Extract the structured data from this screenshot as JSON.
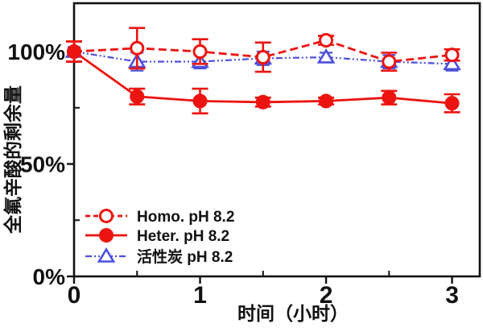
{
  "chart_data": {
    "type": "line",
    "title": "",
    "xlabel": "时间（小时）",
    "ylabel": "全氟辛酸的剩余量",
    "xlim": [
      0,
      3.22
    ],
    "ylim": [
      0,
      121.5
    ],
    "grid": false,
    "legend_position": "lower-left-inside",
    "axis_color": "#111111",
    "x_ticks": [
      {
        "value": 0,
        "label": "0"
      },
      {
        "value": 1,
        "label": "1"
      },
      {
        "value": 2,
        "label": "2"
      },
      {
        "value": 3,
        "label": "3"
      }
    ],
    "x_minor_ticks": [
      0.5,
      1.5,
      2.5
    ],
    "y_ticks": [
      {
        "value": 0,
        "label": "0%"
      },
      {
        "value": 50,
        "label": "50%"
      },
      {
        "value": 100,
        "label": "100%"
      }
    ],
    "y_minor_ticks": [
      25,
      75
    ],
    "x": [
      0,
      0.5,
      1,
      1.5,
      2,
      2.5,
      3
    ],
    "series": [
      {
        "name": "Homo. pH 8.2",
        "color": "#ec1410",
        "line_style": "dashed",
        "marker": "open-circle",
        "values": [
          100,
          101.5,
          100,
          97.5,
          105,
          95.5,
          98.5
        ],
        "errors": [
          4.5,
          9,
          5.5,
          6.5,
          2,
          4,
          2.5
        ]
      },
      {
        "name": "Heter. pH 8.2",
        "color": "#ec1410",
        "line_style": "solid",
        "marker": "filled-circle",
        "values": [
          100,
          80,
          78,
          77.5,
          78,
          79.5,
          77
        ],
        "errors": [
          4.5,
          3.5,
          5.5,
          2,
          1.5,
          3,
          4
        ]
      },
      {
        "name": "活性炭 pH 8.2",
        "color": "#4c50dc",
        "line_style": "dash-dot",
        "marker": "open-triangle",
        "values": [
          100,
          95.5,
          95.5,
          97,
          97.5,
          95.5,
          94.5
        ],
        "errors": [
          2,
          4,
          3,
          3,
          2,
          3,
          3
        ]
      }
    ]
  }
}
